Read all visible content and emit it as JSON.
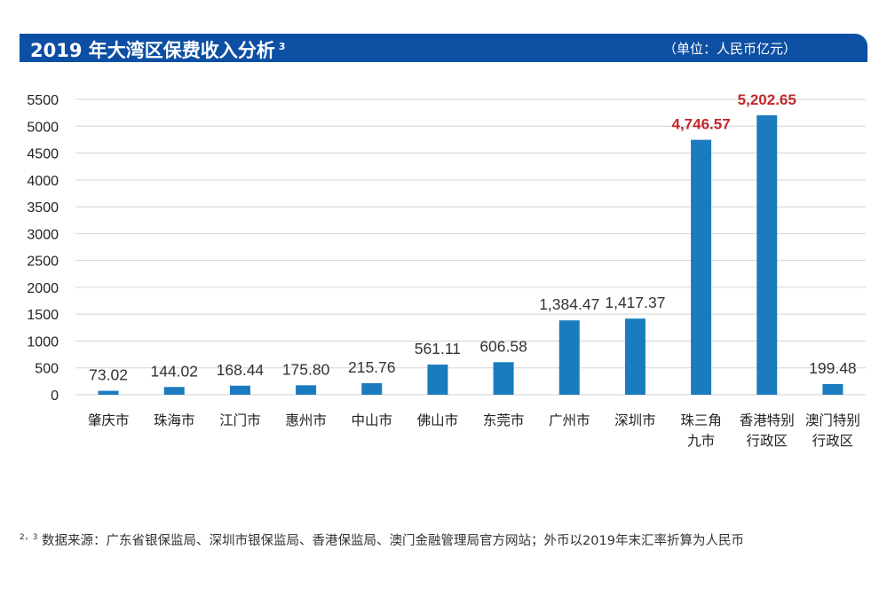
{
  "header": {
    "title": "2019 年大湾区保费收入分析",
    "title_sup": "3",
    "unit": "（单位：人民币亿元）"
  },
  "chart_data": {
    "type": "bar",
    "title": "2019 年大湾区保费收入分析",
    "ylabel": "",
    "xlabel": "",
    "ylim": [
      0,
      5500
    ],
    "yticks": [
      0,
      500,
      1000,
      1500,
      2000,
      2500,
      3000,
      3500,
      4000,
      4500,
      5000,
      5500
    ],
    "grid": true,
    "categories": [
      [
        "肇庆市"
      ],
      [
        "珠海市"
      ],
      [
        "江门市"
      ],
      [
        "惠州市"
      ],
      [
        "中山市"
      ],
      [
        "佛山市"
      ],
      [
        "东莞市"
      ],
      [
        "广州市"
      ],
      [
        "深圳市"
      ],
      [
        "珠三角",
        "九市"
      ],
      [
        "香港特别",
        "行政区"
      ],
      [
        "澳门特别",
        "行政区"
      ]
    ],
    "values": [
      73.02,
      144.02,
      168.44,
      175.8,
      215.76,
      561.11,
      606.58,
      1384.47,
      1417.37,
      4746.57,
      5202.65,
      199.48
    ],
    "value_labels": [
      "73.02",
      "144.02",
      "168.44",
      "175.80",
      "215.76",
      "561.11",
      "606.58",
      "1,384.47",
      "1,417.37",
      "4,746.57",
      "5,202.65",
      "199.48"
    ],
    "highlighted": [
      9,
      10
    ],
    "colors": {
      "bar": "#1a7bbf",
      "grid": "#d4d4d4",
      "label": "#333333",
      "highlight_label": "#c0282d",
      "axis_text": "#222222"
    }
  },
  "footnote": {
    "sup": "2，3",
    "text": " 数据来源：广东省银保监局、深圳市银保监局、香港保监局、澳门金融管理局官方网站；外币以2019年末汇率折算为人民币"
  }
}
